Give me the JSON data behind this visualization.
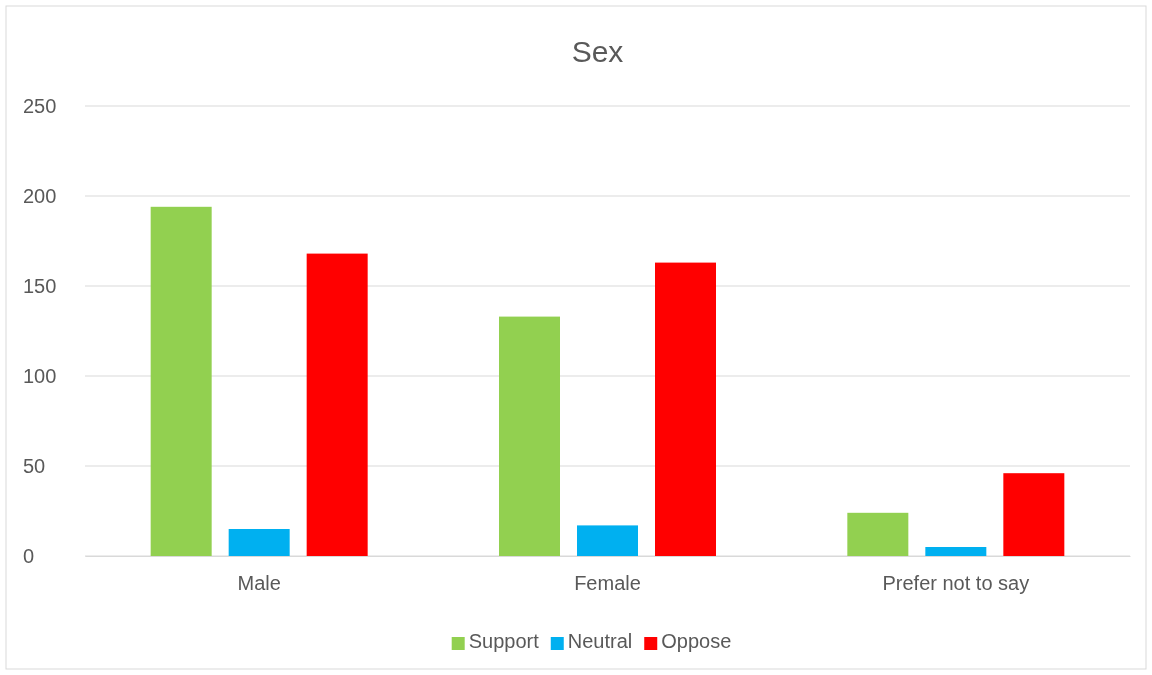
{
  "chart_data": {
    "type": "bar",
    "title": "Sex",
    "categories": [
      "Male",
      "Female",
      "Prefer not to say"
    ],
    "series": [
      {
        "name": "Support",
        "color": "#92d050",
        "values": [
          194,
          133,
          24
        ]
      },
      {
        "name": "Neutral",
        "color": "#00b0f0",
        "values": [
          15,
          17,
          5
        ]
      },
      {
        "name": "Oppose",
        "color": "#ff0000",
        "values": [
          168,
          163,
          46
        ]
      }
    ],
    "ylim": [
      0,
      250
    ],
    "yticks": [
      0,
      50,
      100,
      150,
      200,
      250
    ],
    "grid": "y",
    "legend": "bottom"
  }
}
